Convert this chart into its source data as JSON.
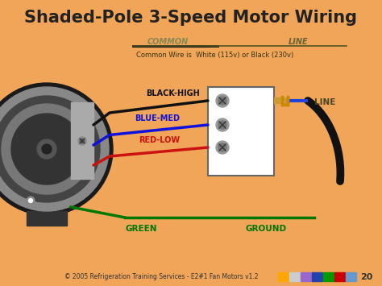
{
  "title": "Shaded-Pole 3-Speed Motor Wiring",
  "bg_color": "#F0A558",
  "title_color": "#222222",
  "title_fontsize": 15,
  "wire_labels": [
    "BLACK-HIGH",
    "BLUE-MED",
    "RED-LOW"
  ],
  "wire_colors": [
    "#111111",
    "#1111DD",
    "#CC1111"
  ],
  "wire_label_colors": [
    "#111111",
    "#1111DD",
    "#CC1111"
  ],
  "green_wire_color": "#007700",
  "green_label": "GREEN",
  "ground_label": "GROUND",
  "common_label": "COMMON",
  "line_label_top": "LINE",
  "common_note": "Common Wire is  White (115v) or Black (230v)",
  "line_label": "LINE",
  "footer": "© 2005 Refrigeration Training Services - E2#1 Fan Motors v1.2",
  "page_num": "20",
  "nav_colors": [
    "#FFA500",
    "#CCCCCC",
    "#9966CC",
    "#2244AA",
    "#009900",
    "#CC0000",
    "#6699CC"
  ]
}
